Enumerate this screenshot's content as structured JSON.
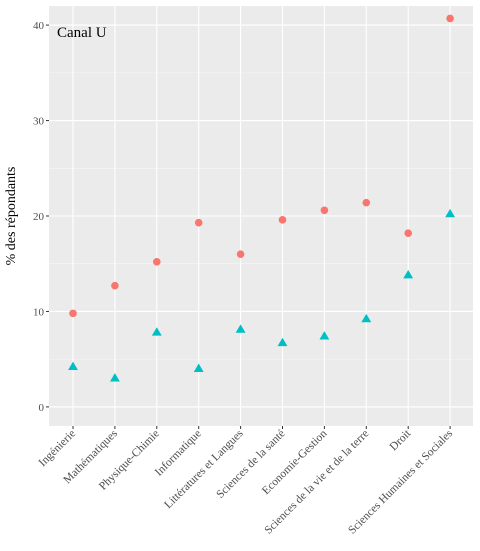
{
  "chart_data": {
    "type": "scatter",
    "title": "Canal U",
    "xlabel": "",
    "ylabel": "% des répondants",
    "ylim": [
      -2,
      42
    ],
    "yticks": [
      0,
      10,
      20,
      30,
      40
    ],
    "ytick_labels": [
      "0",
      "10",
      "20",
      "30",
      "40"
    ],
    "grid": true,
    "legend": "none",
    "categories": [
      "Ingénierie",
      "Mathématiques",
      "Physique-Chimie",
      "Informatique",
      "Littératures et Langues",
      "Sciences de la santé",
      "Economie-Gestion",
      "Sciences de la vie et de la terre",
      "Droit",
      "Sciences Humaines et Sociales"
    ],
    "series": [
      {
        "marker": "circle",
        "color": "#F8766D",
        "values": [
          9.8,
          12.7,
          15.2,
          19.3,
          16.0,
          19.6,
          20.6,
          21.4,
          18.2,
          40.7
        ]
      },
      {
        "marker": "triangle",
        "color": "#00BFC4",
        "values": [
          4.2,
          3.0,
          7.8,
          4.0,
          8.1,
          6.7,
          7.4,
          9.2,
          13.8,
          20.2
        ]
      }
    ]
  }
}
